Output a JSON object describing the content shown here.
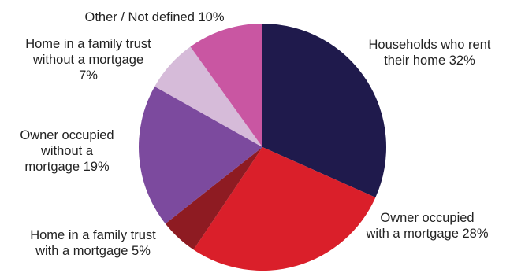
{
  "chart_data": {
    "type": "pie",
    "title": "",
    "start_angle_deg": 0,
    "direction": "clockwise",
    "legend": "none",
    "slices": [
      {
        "name": "Households who rent their home",
        "value": 32,
        "label_lines": [
          "Households who rent",
          "their home 32%"
        ],
        "color": "#1f1a4c"
      },
      {
        "name": "Owner occupied with a mortgage",
        "value": 28,
        "label_lines": [
          "Owner occupied",
          "with a mortgage 28%"
        ],
        "color": "#da1f2a"
      },
      {
        "name": "Home in a family trust with a mortgage",
        "value": 5,
        "label_lines": [
          "Home in a family trust",
          "with a mortgage 5%"
        ],
        "color": "#8e1b22"
      },
      {
        "name": "Owner occupied without a mortgage",
        "value": 19,
        "label_lines": [
          "Owner occupied",
          "without a",
          "mortgage 19%"
        ],
        "color": "#7c4a9e"
      },
      {
        "name": "Home in a family trust without a mortgage",
        "value": 7,
        "label_lines": [
          "Home in a family trust",
          "without a mortgage",
          "7%"
        ],
        "color": "#d6bbd9"
      },
      {
        "name": "Other / Not defined",
        "value": 10,
        "label_lines": [
          "Other / Not defined 10%"
        ],
        "color": "#c956a2"
      }
    ]
  }
}
